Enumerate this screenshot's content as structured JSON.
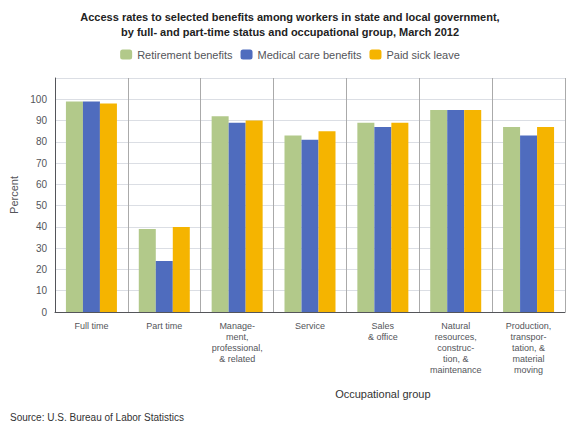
{
  "chart_data": {
    "type": "bar",
    "title": "Access rates to selected benefits among workers in state and local government,",
    "subtitle": "by full- and part-time status and occupational group, March 2012",
    "categories": [
      "Full time",
      "Part time",
      "Manage-\nment,\nprofessional,\n& related",
      "Service",
      "Sales\n& office",
      "Natural\nresources,\nconstruc-\ntion, &\nmaintenance",
      "Production,\ntranspor-\ntation, &\nmaterial\nmoving"
    ],
    "series": [
      {
        "name": "Retirement benefits",
        "color": "#b2c98a",
        "values": [
          99,
          39,
          92,
          83,
          89,
          95,
          87
        ]
      },
      {
        "name": "Medical care benefits",
        "color": "#4f6cbe",
        "values": [
          99,
          24,
          89,
          81,
          87,
          95,
          83
        ]
      },
      {
        "name": "Paid sick leave",
        "color": "#f5b400",
        "values": [
          98,
          40,
          90,
          85,
          89,
          95,
          87
        ]
      }
    ],
    "ylabel": "Percent",
    "xlabel": "Occupational group",
    "source": "Source: U.S. Bureau of Labor Statistics",
    "ylim": [
      0,
      110
    ],
    "yticks": [
      0,
      10,
      20,
      30,
      40,
      50,
      60,
      70,
      80,
      90,
      100
    ],
    "grid": true,
    "legend": "top"
  }
}
